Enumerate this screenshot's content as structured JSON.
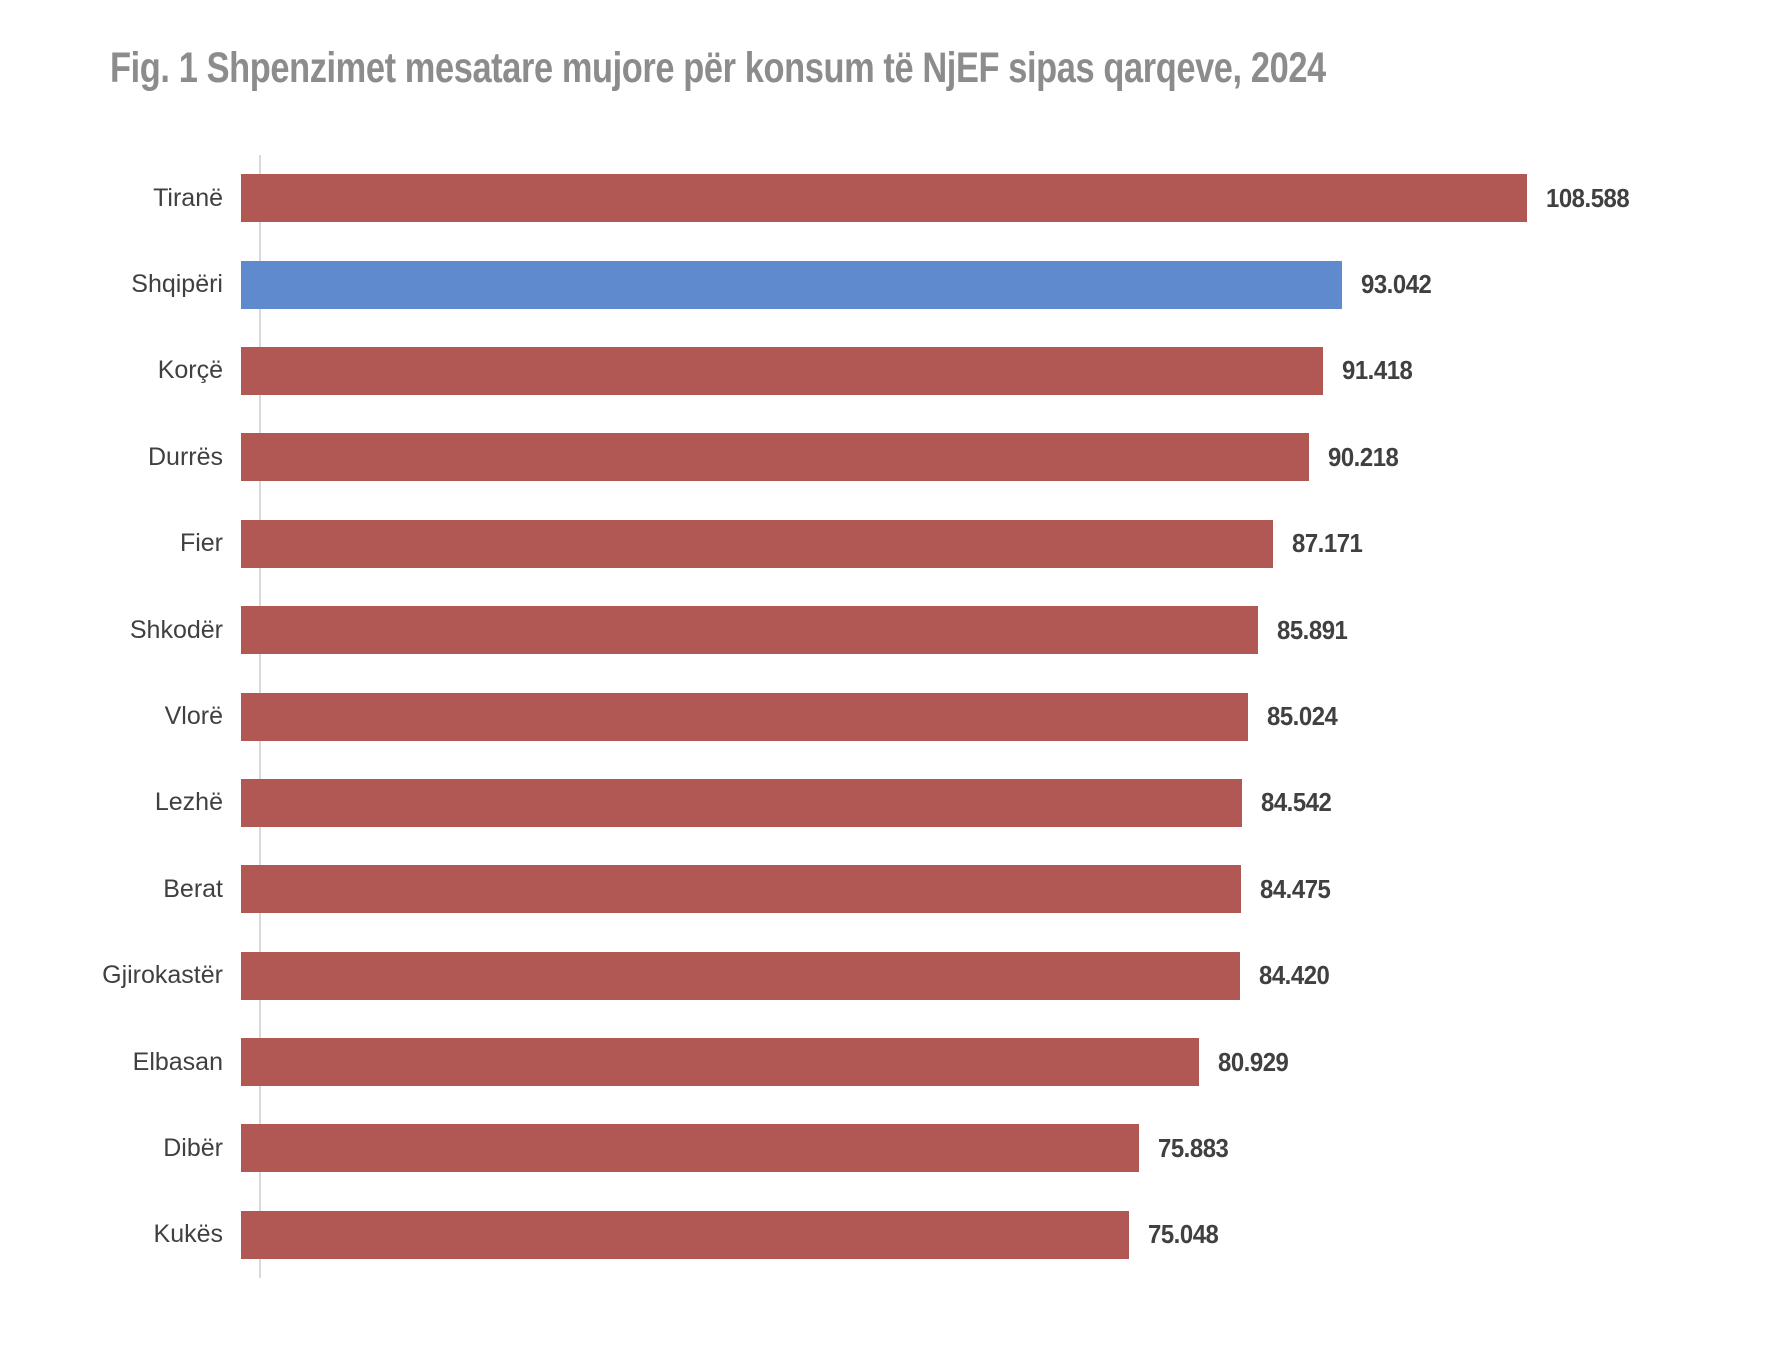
{
  "title": "Fig. 1 Shpenzimet mesatare mujore për konsum të NjEF sipas qarqeve, 2024",
  "colors": {
    "bar_default": "#B25854",
    "bar_highlight": "#5F8ACD",
    "title_text": "#8C8C8C",
    "label_text": "#404040",
    "axis_line": "#D9D9D9",
    "background": "#FFFFFF"
  },
  "chart_data": {
    "type": "bar",
    "orientation": "horizontal",
    "title": "Fig. 1 Shpenzimet mesatare mujore për konsum të NjEF sipas qarqeve, 2024",
    "xlabel": "",
    "ylabel": "",
    "grid": false,
    "legend": false,
    "xlim": [
      0,
      130000
    ],
    "highlighted_category": "Shqipëri",
    "categories": [
      "Tiranë",
      "Shqipëri",
      "Korçë",
      "Durrës",
      "Fier",
      "Shkodër",
      "Vlorë",
      "Lezhë",
      "Berat",
      "Gjirokastër",
      "Elbasan",
      "Dibër",
      "Kukës"
    ],
    "values": [
      108588,
      93042,
      91418,
      90218,
      87171,
      85891,
      85024,
      84542,
      84475,
      84420,
      80929,
      75883,
      75048
    ],
    "value_labels": [
      "108.588",
      "93.042",
      "91.418",
      "90.218",
      "87.171",
      "85.891",
      "85.024",
      "84.542",
      "84.475",
      "84.420",
      "80.929",
      "75.883",
      "75.048"
    ]
  }
}
